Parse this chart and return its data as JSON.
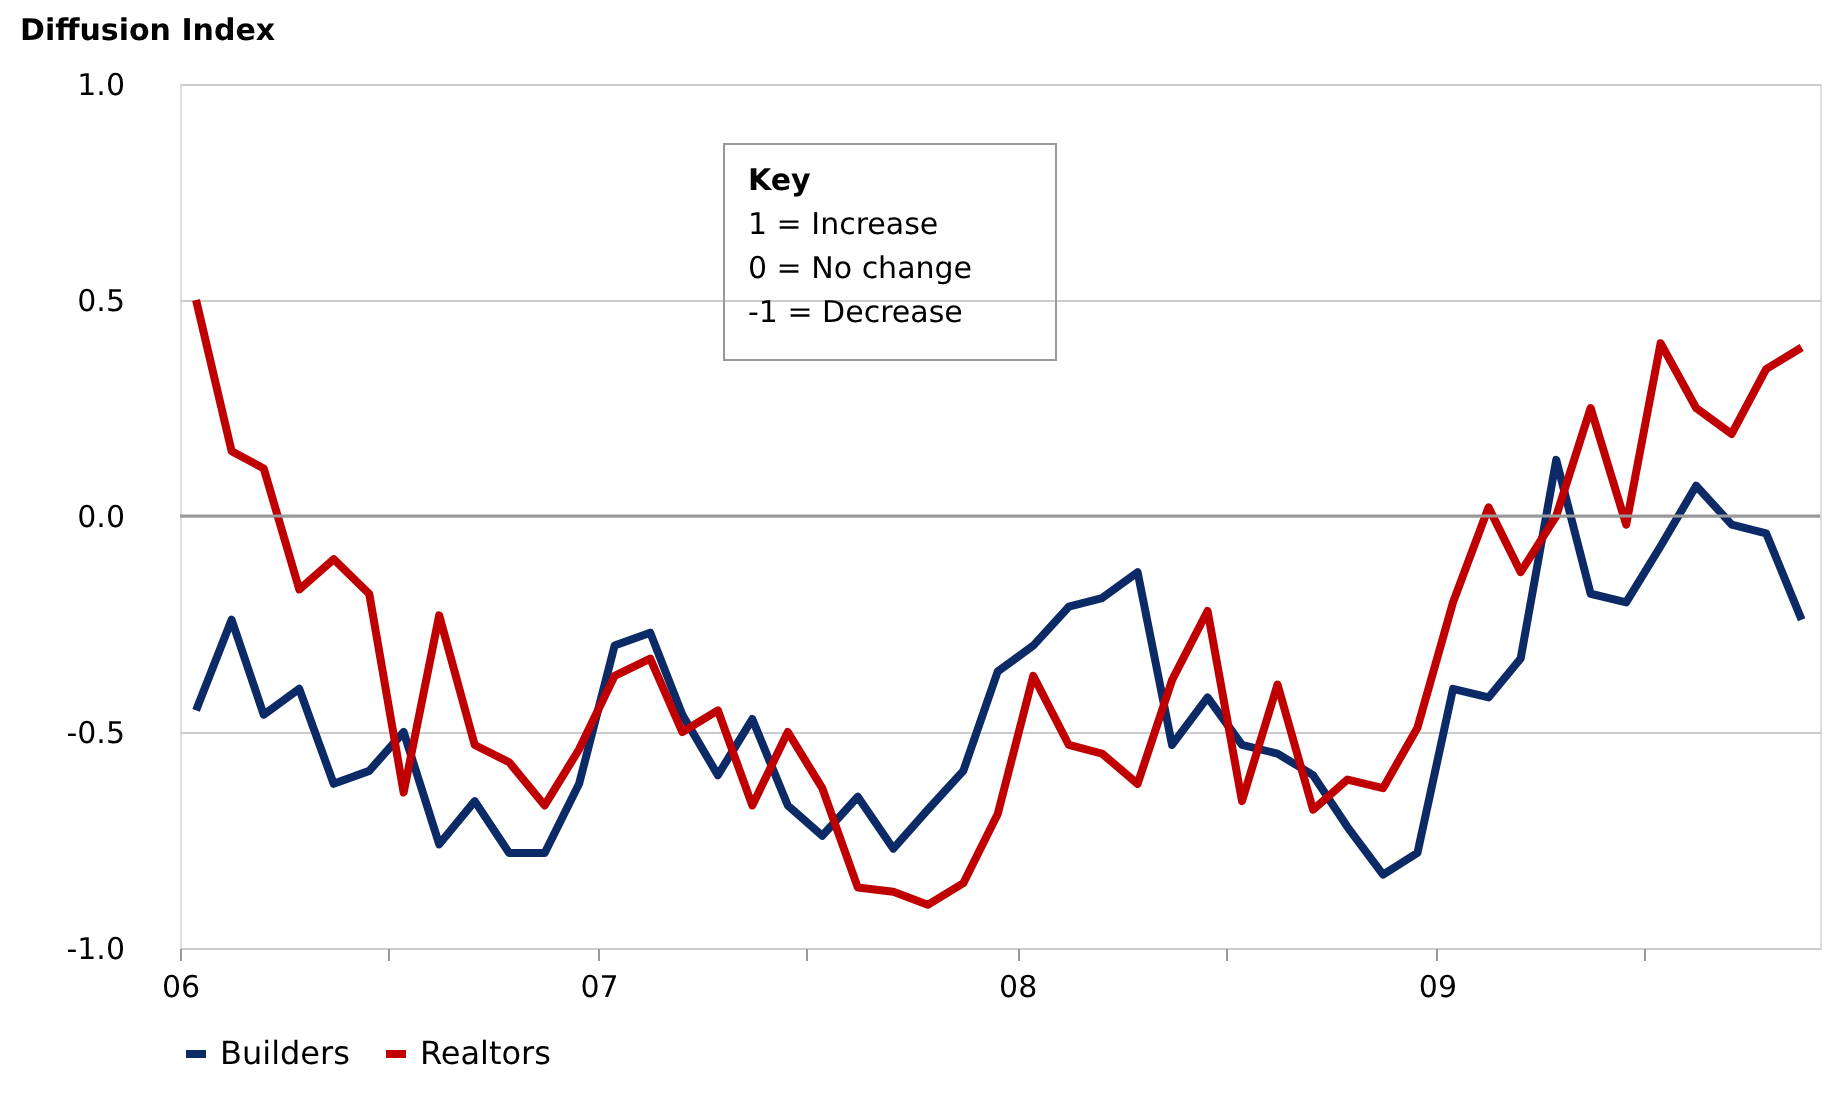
{
  "chart_data": {
    "type": "line",
    "ylabel": "Diffusion Index",
    "annotations": [
      "Key",
      "1  = Increase",
      "0  = No change",
      "-1 = Decrease"
    ],
    "x": [
      "2006-01-15",
      "2006-02-15",
      "2006-03-15",
      "2006-04-15",
      "2006-05-15",
      "2006-06-15",
      "2006-07-15",
      "2006-08-15",
      "2006-09-15",
      "2006-10-15",
      "2006-11-15",
      "2006-12-15",
      "2007-01-15",
      "2007-02-15",
      "2007-03-15",
      "2007-04-15",
      "2007-05-15",
      "2007-06-15",
      "2007-07-15",
      "2007-08-15",
      "2007-09-15",
      "2007-10-15",
      "2007-11-15",
      "2007-12-15",
      "2008-01-15",
      "2008-02-15",
      "2008-03-15",
      "2008-04-15",
      "2008-05-15",
      "2008-06-15",
      "2008-07-15",
      "2008-08-15",
      "2008-09-15",
      "2008-10-15",
      "2008-11-15",
      "2008-12-15",
      "2009-01-15",
      "2009-02-15",
      "2009-03-15",
      "2009-04-15",
      "2009-05-15",
      "2009-06-15",
      "2009-07-15",
      "2009-08-15",
      "2009-09-15",
      "2009-10-15",
      "2009-11-15"
    ],
    "series": [
      {
        "name": "Builders",
        "color": "#0b2a66",
        "values": [
          -0.45,
          -0.24,
          -0.46,
          -0.4,
          -0.62,
          -0.59,
          -0.5,
          -0.76,
          -0.66,
          -0.78,
          -0.78,
          -0.62,
          -0.3,
          -0.27,
          -0.46,
          -0.6,
          -0.47,
          -0.67,
          -0.74,
          -0.65,
          -0.77,
          -0.68,
          -0.59,
          -0.36,
          -0.3,
          -0.21,
          -0.19,
          -0.13,
          -0.53,
          -0.42,
          -0.53,
          -0.55,
          -0.6,
          -0.72,
          -0.83,
          -0.78,
          -0.4,
          -0.42,
          -0.33,
          0.13,
          -0.18,
          -0.2,
          -0.07,
          0.07,
          -0.02,
          -0.04,
          -0.24
        ]
      },
      {
        "name": "Realtors",
        "color": "#c00000",
        "values": [
          0.5,
          0.15,
          0.11,
          -0.17,
          -0.1,
          -0.18,
          -0.64,
          -0.23,
          -0.53,
          -0.57,
          -0.67,
          -0.54,
          -0.37,
          -0.33,
          -0.5,
          -0.45,
          -0.67,
          -0.5,
          -0.63,
          -0.86,
          -0.87,
          -0.9,
          -0.85,
          -0.69,
          -0.37,
          -0.53,
          -0.55,
          -0.62,
          -0.38,
          -0.22,
          -0.66,
          -0.39,
          -0.68,
          -0.61,
          -0.63,
          -0.49,
          -0.2,
          0.02,
          -0.13,
          0.0,
          0.25,
          -0.02,
          0.4,
          0.25,
          0.19,
          0.34,
          0.39
        ]
      }
    ],
    "xlim": [
      "2006-01-01",
      "2009-12-01"
    ],
    "xticks": [
      {
        "value": "2006-01-01",
        "label": "06"
      },
      {
        "value": "2006-07-01",
        "label": null
      },
      {
        "value": "2007-01-01",
        "label": "07"
      },
      {
        "value": "2007-07-01",
        "label": null
      },
      {
        "value": "2008-01-01",
        "label": "08"
      },
      {
        "value": "2008-07-01",
        "label": null
      },
      {
        "value": "2009-01-01",
        "label": "09"
      },
      {
        "value": "2009-07-01",
        "label": null
      }
    ],
    "ylim": [
      -1.0,
      1.0
    ],
    "yticks": [
      {
        "value": -1.0,
        "label": "-1.0"
      },
      {
        "value": -0.5,
        "label": "-0.5"
      },
      {
        "value": 0,
        "label": "0.0"
      },
      {
        "value": 0.5,
        "label": "0.5"
      },
      {
        "value": 1.0,
        "label": "1.0"
      }
    ],
    "ref_lines": [
      {
        "axis": "y",
        "value": 0,
        "label": null,
        "color": "#999999"
      }
    ],
    "grid": "y",
    "legend": "bottom",
    "marker": "none",
    "line_style": "solid"
  }
}
